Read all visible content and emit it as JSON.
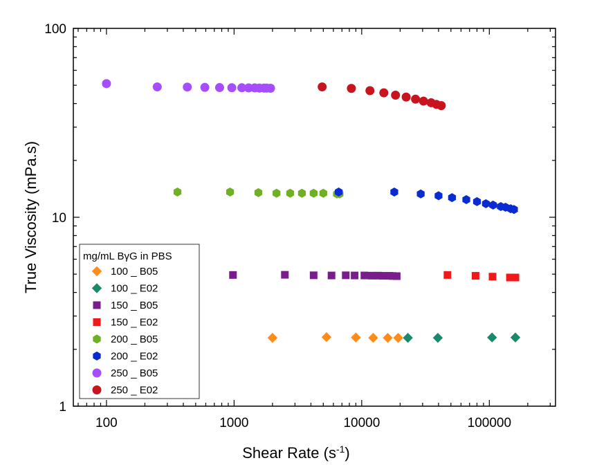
{
  "chart_data": {
    "type": "scatter",
    "xlabel": "Shear Rate (s",
    "xlabel_sup": "-1",
    "xlabel_suffix": ")",
    "ylabel": "True Viscosity (mPa.s)",
    "xscale": "log",
    "yscale": "log",
    "xlim": [
      55,
      330000
    ],
    "ylim": [
      1,
      100
    ],
    "x_ticks": [
      {
        "value": 100,
        "label": "100"
      },
      {
        "value": 1000,
        "label": "1000"
      },
      {
        "value": 10000,
        "label": "10000"
      },
      {
        "value": 100000,
        "label": "100000"
      }
    ],
    "y_ticks": [
      {
        "value": 1,
        "label": "1"
      },
      {
        "value": 10,
        "label": "10"
      },
      {
        "value": 100,
        "label": "100"
      }
    ],
    "grid": false,
    "legend": {
      "title": "mg/mL BγG in PBS",
      "placement": "bottom-left"
    },
    "series": [
      {
        "name": "100 _ B05",
        "color": "#ff8c1a",
        "marker": "diamond",
        "x": [
          2000,
          5300,
          9000,
          12300,
          16000,
          19300
        ],
        "y": [
          2.3,
          2.32,
          2.31,
          2.3,
          2.3,
          2.3
        ]
      },
      {
        "name": "100 _ E02",
        "color": "#1a8a6a",
        "marker": "diamond",
        "x": [
          23000,
          39500,
          105000,
          160000
        ],
        "y": [
          2.3,
          2.3,
          2.31,
          2.31
        ]
      },
      {
        "name": "150 _ B05",
        "color": "#7a1d8c",
        "marker": "square",
        "x": [
          980,
          2500,
          4200,
          5800,
          7500,
          8800,
          10500,
          12000,
          13500,
          14700,
          16500,
          17500,
          18800
        ],
        "y": [
          4.95,
          4.96,
          4.93,
          4.92,
          4.93,
          4.92,
          4.92,
          4.91,
          4.91,
          4.9,
          4.9,
          4.89,
          4.88
        ]
      },
      {
        "name": "150 _ E02",
        "color": "#f01818",
        "marker": "square",
        "x": [
          47000,
          78000,
          106000,
          145000,
          160000
        ],
        "y": [
          4.95,
          4.9,
          4.85,
          4.8,
          4.8
        ]
      },
      {
        "name": "200 _ B05",
        "color": "#6fb024",
        "marker": "hexagon",
        "x": [
          360,
          930,
          1550,
          2150,
          2750,
          3400,
          4200,
          5000,
          6400,
          6700
        ],
        "y": [
          13.6,
          13.6,
          13.5,
          13.4,
          13.4,
          13.4,
          13.4,
          13.4,
          13.3,
          13.3
        ]
      },
      {
        "name": "200 _ E02",
        "color": "#0a2bd1",
        "marker": "hexagon",
        "x": [
          6600,
          18000,
          29000,
          40000,
          51000,
          66000,
          80000,
          94000,
          107000,
          123000,
          134000,
          147000,
          156000
        ],
        "y": [
          13.6,
          13.6,
          13.3,
          13.0,
          12.7,
          12.4,
          12.1,
          11.8,
          11.6,
          11.4,
          11.3,
          11.1,
          11.0
        ]
      },
      {
        "name": "250 _ B05",
        "color": "#a64dff",
        "marker": "circle",
        "x": [
          100,
          250,
          430,
          590,
          770,
          960,
          1150,
          1300,
          1450,
          1580,
          1720,
          1800,
          1930
        ],
        "y": [
          51,
          49,
          48.9,
          48.7,
          48.6,
          48.5,
          48.5,
          48.4,
          48.4,
          48.3,
          48.3,
          48.3,
          48.2
        ]
      },
      {
        "name": "250 _ E02",
        "color": "#c8141e",
        "marker": "circle",
        "x": [
          4900,
          8300,
          11600,
          14900,
          18400,
          22300,
          26400,
          30500,
          35000,
          38500,
          42000
        ],
        "y": [
          49,
          48.1,
          46.8,
          45.6,
          44.3,
          43.3,
          42.2,
          41.2,
          40.4,
          39.6,
          39.0
        ]
      }
    ]
  }
}
